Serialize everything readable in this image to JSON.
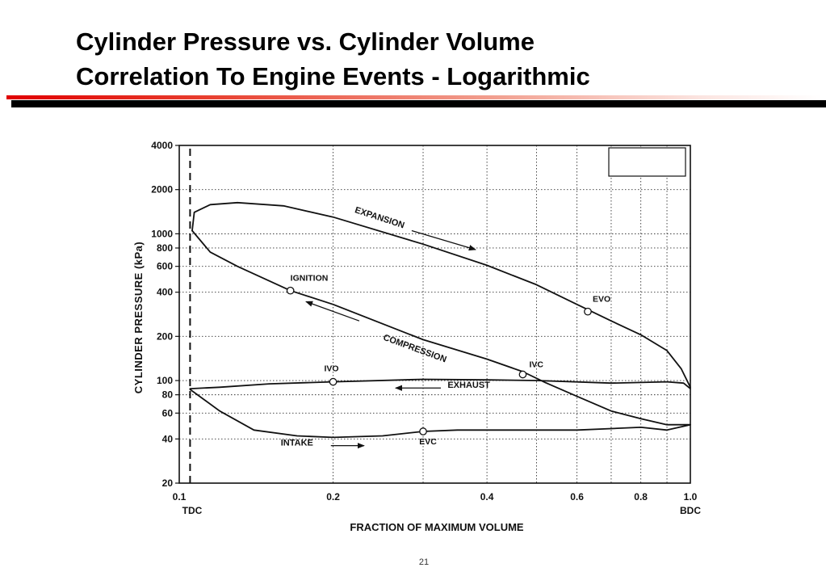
{
  "slide": {
    "title_line1": "Cylinder Pressure vs. Cylinder Volume",
    "title_line2": "Correlation To Engine Events - Logarithmic",
    "page_number": "21",
    "accent_colors": {
      "rule_red": "#e00000",
      "rule_black": "#000000"
    }
  },
  "chart_data": {
    "type": "line",
    "title": "",
    "xlabel": "FRACTION OF MAXIMUM VOLUME",
    "ylabel": "CYLINDER PRESSURE (kPa)",
    "x_scale": "log",
    "y_scale": "log",
    "xlim": [
      0.1,
      1.0
    ],
    "ylim": [
      20,
      4000
    ],
    "grid": true,
    "x_ticks": [
      {
        "value": 0.1,
        "label": "0.1",
        "sublabel": "TDC"
      },
      {
        "value": 0.2,
        "label": "0.2",
        "sublabel": ""
      },
      {
        "value": 0.4,
        "label": "0.4",
        "sublabel": ""
      },
      {
        "value": 0.6,
        "label": "0.6",
        "sublabel": ""
      },
      {
        "value": 0.8,
        "label": "0.8",
        "sublabel": ""
      },
      {
        "value": 1.0,
        "label": "1.0",
        "sublabel": "BDC"
      }
    ],
    "x_gridlines": [
      0.2,
      0.3,
      0.4,
      0.5,
      0.6,
      0.7,
      0.8,
      0.9
    ],
    "y_ticks": [
      {
        "value": 4000,
        "label": "4000"
      },
      {
        "value": 2000,
        "label": "2000"
      },
      {
        "value": 1000,
        "label": "1000"
      },
      {
        "value": 800,
        "label": "800"
      },
      {
        "value": 600,
        "label": "600"
      },
      {
        "value": 400,
        "label": "400"
      },
      {
        "value": 200,
        "label": "200"
      },
      {
        "value": 100,
        "label": "100"
      },
      {
        "value": 80,
        "label": "80"
      },
      {
        "value": 60,
        "label": "60"
      },
      {
        "value": 40,
        "label": "40"
      },
      {
        "value": 20,
        "label": "20"
      }
    ],
    "tdc_marker_x": 0.105,
    "series": [
      {
        "points": [
          [
            0.106,
            1050
          ],
          [
            0.107,
            1400
          ],
          [
            0.115,
            1580
          ],
          [
            0.13,
            1630
          ],
          [
            0.16,
            1550
          ],
          [
            0.2,
            1300
          ],
          [
            0.3,
            850
          ],
          [
            0.4,
            610
          ],
          [
            0.5,
            450
          ],
          [
            0.6,
            330
          ],
          [
            0.7,
            255
          ],
          [
            0.8,
            205
          ],
          [
            0.9,
            160
          ],
          [
            0.96,
            120
          ],
          [
            1.0,
            90
          ]
        ]
      },
      {
        "points": [
          [
            0.106,
            1050
          ],
          [
            0.115,
            750
          ],
          [
            0.13,
            600
          ],
          [
            0.165,
            410
          ],
          [
            0.2,
            330
          ],
          [
            0.3,
            190
          ],
          [
            0.4,
            140
          ],
          [
            0.47,
            115
          ],
          [
            0.52,
            97
          ],
          [
            0.6,
            78
          ],
          [
            0.7,
            62
          ],
          [
            0.8,
            55
          ],
          [
            0.9,
            50
          ],
          [
            1.0,
            50
          ]
        ]
      },
      {
        "points": [
          [
            1.0,
            88
          ],
          [
            0.97,
            96
          ],
          [
            0.9,
            98
          ],
          [
            0.8,
            97
          ],
          [
            0.7,
            96
          ],
          [
            0.5,
            100
          ],
          [
            0.4,
            101
          ],
          [
            0.3,
            102
          ],
          [
            0.2,
            98
          ],
          [
            0.15,
            95
          ],
          [
            0.12,
            90
          ],
          [
            0.105,
            88
          ]
        ]
      },
      {
        "points": [
          [
            0.105,
            87
          ],
          [
            0.12,
            62
          ],
          [
            0.14,
            46
          ],
          [
            0.17,
            42
          ],
          [
            0.2,
            41
          ],
          [
            0.25,
            42
          ],
          [
            0.3,
            45
          ],
          [
            0.35,
            46
          ],
          [
            0.45,
            46
          ],
          [
            0.6,
            46
          ],
          [
            0.8,
            48
          ],
          [
            0.9,
            46
          ],
          [
            1.0,
            50
          ]
        ]
      }
    ],
    "event_markers": [
      {
        "label": "IGNITION",
        "x": 0.165,
        "y": 410
      },
      {
        "label": "IVC",
        "x": 0.47,
        "y": 110
      },
      {
        "label": "EVO",
        "x": 0.63,
        "y": 295
      },
      {
        "label": "IVO",
        "x": 0.2,
        "y": 98
      },
      {
        "label": "EVC",
        "x": 0.3,
        "y": 45
      }
    ],
    "annotations": [
      {
        "text": "EXPANSION",
        "x": 0.22,
        "y": 1400,
        "rotate": 18
      },
      {
        "text": "COMPRESSION",
        "x": 0.25,
        "y": 190,
        "rotate": 20
      },
      {
        "text": "EXHAUST",
        "x": 0.335,
        "y": 89,
        "rotate": 0
      },
      {
        "text": "INTAKE",
        "x": 0.158,
        "y": 36,
        "rotate": 0
      }
    ],
    "arrows": [
      {
        "from": [
          0.285,
          1050
        ],
        "to": [
          0.38,
          780
        ]
      },
      {
        "from": [
          0.225,
          255
        ],
        "to": [
          0.177,
          345
        ]
      },
      {
        "from": [
          0.325,
          89
        ],
        "to": [
          0.265,
          89
        ]
      },
      {
        "from": [
          0.198,
          36
        ],
        "to": [
          0.23,
          36
        ]
      }
    ]
  }
}
